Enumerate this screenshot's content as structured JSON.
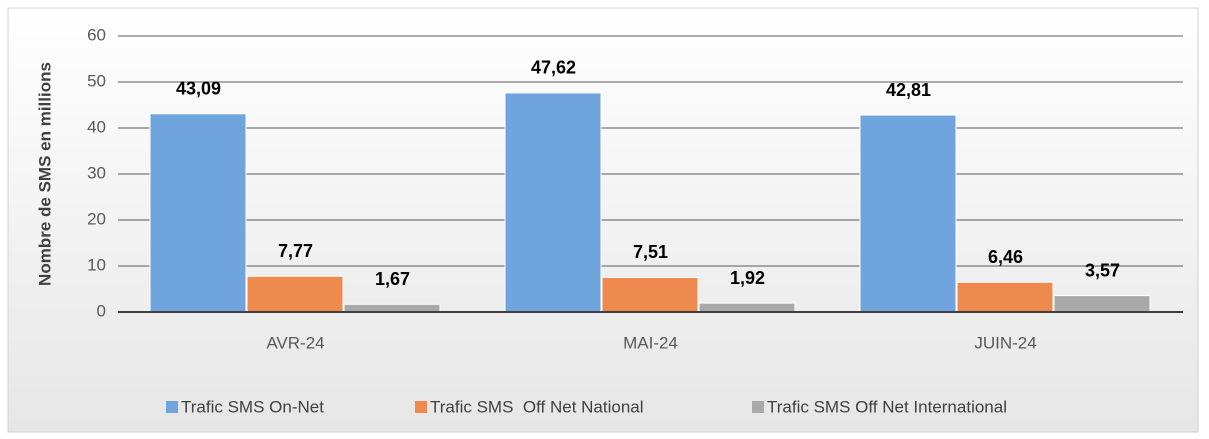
{
  "chart_data": {
    "type": "bar",
    "y_label": "Nombre de SMS en millions",
    "categories": [
      "AVR-24",
      "MAI-24",
      "JUIN-24"
    ],
    "series": [
      {
        "name": "Trafic SMS On-Net",
        "color": "#6fa5dc",
        "values": [
          43.09,
          47.62,
          42.81
        ],
        "value_labels": [
          "43,09",
          "47,62",
          "42,81"
        ]
      },
      {
        "name": "Trafic SMS  Off Net National",
        "color": "#ee8a4e",
        "values": [
          7.77,
          7.51,
          6.46
        ],
        "value_labels": [
          "7,77",
          "7,51",
          "6,46"
        ]
      },
      {
        "name": "Trafic SMS Off Net International",
        "color": "#a9a9a9",
        "values": [
          1.67,
          1.92,
          3.57
        ],
        "value_labels": [
          "1,67",
          "1,92",
          "3,57"
        ]
      }
    ],
    "ylim": [
      0,
      60
    ],
    "yticks": [
      0,
      10,
      20,
      30,
      40,
      50,
      60
    ],
    "grid": true,
    "legend": "bottom"
  }
}
